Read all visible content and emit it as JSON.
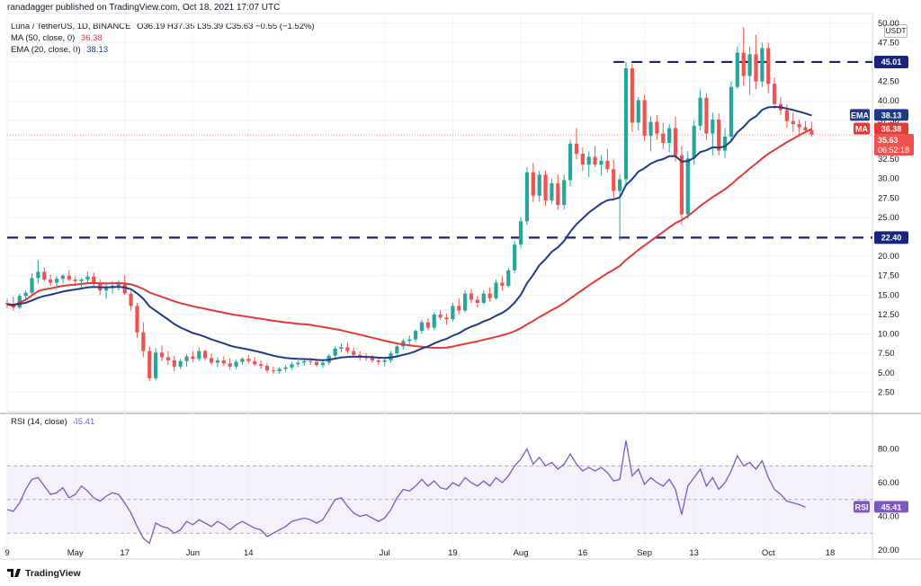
{
  "header": {
    "text": "ranadagger published on TradingView.com, Oct 18, 2021 17:07 UTC"
  },
  "legend": {
    "symbol": "Luna / TetherUS, 1D, BINANCE",
    "ohlc": "O36.19  H37.35  L35.39  C35.63  −0.55 (−1.52%)",
    "ma_label": "MA (50, close, 0)",
    "ma_value": "36.38",
    "ema_label": "EMA (20, close, 0)",
    "ema_value": "38.13",
    "rsi_label": "RSI (14, close)",
    "rsi_value": "45.41"
  },
  "currency": "USDT",
  "footer": {
    "brand": "TradingView"
  },
  "colors": {
    "up": "#26a69a",
    "down": "#ef5350",
    "ema": "#1e3a8a",
    "ma": "#e53935",
    "rsi": "#7e57c2",
    "level": "#1a237e",
    "rsi_band": "#ede7f6"
  },
  "chart_data": [
    {
      "type": "candlestick",
      "title": "Luna / TetherUS, 1D, BINANCE",
      "ylabel": "USDT",
      "ylim": [
        0,
        51.25
      ],
      "y_ticks": [
        "50.00",
        "47.50",
        "45.00",
        "42.50",
        "40.00",
        "37.50",
        "35.00",
        "32.50",
        "30.00",
        "27.50",
        "25.00",
        "22.50",
        "20.00",
        "17.50",
        "15.00",
        "12.50",
        "10.00",
        "7.50",
        "5.00",
        "2.50"
      ],
      "x_ticks": [
        "9",
        "May",
        "17",
        "Jun",
        "14",
        "Jul",
        "19",
        "Aug",
        "16",
        "Sep",
        "13",
        "Oct",
        "18"
      ],
      "x_tick_days": [
        0,
        11,
        19,
        30,
        39,
        61,
        72,
        83,
        93,
        103,
        111,
        123,
        133
      ],
      "ohlc": [
        [
          14.0,
          14.5,
          13.3,
          13.8
        ],
        [
          13.8,
          14.8,
          13.0,
          13.4
        ],
        [
          13.4,
          15.2,
          13.2,
          14.9
        ],
        [
          14.9,
          15.6,
          14.3,
          15.3
        ],
        [
          15.3,
          17.8,
          15.0,
          17.2
        ],
        [
          17.2,
          19.5,
          16.5,
          18.0
        ],
        [
          18.0,
          18.6,
          16.8,
          17.0
        ],
        [
          17.0,
          17.6,
          16.2,
          16.6
        ],
        [
          16.6,
          17.4,
          16.0,
          17.1
        ],
        [
          17.1,
          17.7,
          16.5,
          17.5
        ],
        [
          17.5,
          18.2,
          16.8,
          17.0
        ],
        [
          17.0,
          17.4,
          16.2,
          16.8
        ],
        [
          16.8,
          17.2,
          16.0,
          17.0
        ],
        [
          17.0,
          18.0,
          16.5,
          17.4
        ],
        [
          17.4,
          17.9,
          16.2,
          16.6
        ],
        [
          16.6,
          17.0,
          15.0,
          15.6
        ],
        [
          15.6,
          16.5,
          14.5,
          16.0
        ],
        [
          16.0,
          16.8,
          15.2,
          16.2
        ],
        [
          16.2,
          16.9,
          15.6,
          16.4
        ],
        [
          16.4,
          17.6,
          15.0,
          15.2
        ],
        [
          15.2,
          15.5,
          13.0,
          13.6
        ],
        [
          13.6,
          14.0,
          9.5,
          10.2
        ],
        [
          10.2,
          11.5,
          7.0,
          7.8
        ],
        [
          7.8,
          8.4,
          3.9,
          4.3
        ],
        [
          4.3,
          8.2,
          4.0,
          7.6
        ],
        [
          7.6,
          8.5,
          6.5,
          7.0
        ],
        [
          7.0,
          7.8,
          6.0,
          6.6
        ],
        [
          6.6,
          7.2,
          5.2,
          5.8
        ],
        [
          5.8,
          6.8,
          5.5,
          6.5
        ],
        [
          6.5,
          7.4,
          5.8,
          7.1
        ],
        [
          7.1,
          7.8,
          6.4,
          6.8
        ],
        [
          6.8,
          8.2,
          6.5,
          7.8
        ],
        [
          7.8,
          8.0,
          6.6,
          6.9
        ],
        [
          6.9,
          7.5,
          6.0,
          6.3
        ],
        [
          6.3,
          7.0,
          5.7,
          6.6
        ],
        [
          6.6,
          7.1,
          5.9,
          6.2
        ],
        [
          6.2,
          6.9,
          5.4,
          5.8
        ],
        [
          5.8,
          6.7,
          5.5,
          6.4
        ],
        [
          6.4,
          7.0,
          6.0,
          6.8
        ],
        [
          6.8,
          7.3,
          6.2,
          6.5
        ],
        [
          6.5,
          7.0,
          5.9,
          6.1
        ],
        [
          6.1,
          6.6,
          5.5,
          5.9
        ],
        [
          5.9,
          6.2,
          5.0,
          5.3
        ],
        [
          5.3,
          5.8,
          4.8,
          5.2
        ],
        [
          5.2,
          5.7,
          4.9,
          5.5
        ],
        [
          5.5,
          6.0,
          5.1,
          5.7
        ],
        [
          5.7,
          6.4,
          5.4,
          6.1
        ],
        [
          6.1,
          6.6,
          5.7,
          6.3
        ],
        [
          6.3,
          6.8,
          5.9,
          6.5
        ],
        [
          6.5,
          6.9,
          6.0,
          6.4
        ],
        [
          6.4,
          6.8,
          5.8,
          6.0
        ],
        [
          6.0,
          6.6,
          5.6,
          6.3
        ],
        [
          6.3,
          7.4,
          6.0,
          7.2
        ],
        [
          7.2,
          8.4,
          6.9,
          8.1
        ],
        [
          8.1,
          8.8,
          7.6,
          8.3
        ],
        [
          8.3,
          8.9,
          7.5,
          7.8
        ],
        [
          7.8,
          8.2,
          7.0,
          7.3
        ],
        [
          7.3,
          7.8,
          6.6,
          7.0
        ],
        [
          7.0,
          7.5,
          6.5,
          6.9
        ],
        [
          6.9,
          7.3,
          6.3,
          6.6
        ],
        [
          6.6,
          7.0,
          6.0,
          6.4
        ],
        [
          6.4,
          6.9,
          5.8,
          6.6
        ],
        [
          6.6,
          7.8,
          6.3,
          7.5
        ],
        [
          7.5,
          8.6,
          7.2,
          8.4
        ],
        [
          8.4,
          9.4,
          8.0,
          9.1
        ],
        [
          9.1,
          9.8,
          8.6,
          9.3
        ],
        [
          9.3,
          10.6,
          9.0,
          10.4
        ],
        [
          10.4,
          11.8,
          10.0,
          11.5
        ],
        [
          11.5,
          12.0,
          10.5,
          10.8
        ],
        [
          10.8,
          12.8,
          10.5,
          12.5
        ],
        [
          12.5,
          13.1,
          11.8,
          12.1
        ],
        [
          12.1,
          12.6,
          11.2,
          11.9
        ],
        [
          11.9,
          14.0,
          11.6,
          13.6
        ],
        [
          13.6,
          14.6,
          12.5,
          13.0
        ],
        [
          13.0,
          15.6,
          12.8,
          15.2
        ],
        [
          15.2,
          15.8,
          14.0,
          14.4
        ],
        [
          14.4,
          14.9,
          13.4,
          14.0
        ],
        [
          14.0,
          15.6,
          13.8,
          15.2
        ],
        [
          15.2,
          16.0,
          14.2,
          14.6
        ],
        [
          14.6,
          17.0,
          14.4,
          16.6
        ],
        [
          16.6,
          17.5,
          15.6,
          16.2
        ],
        [
          16.2,
          18.5,
          16.0,
          18.2
        ],
        [
          18.2,
          22.0,
          17.8,
          21.5
        ],
        [
          21.5,
          25.0,
          21.0,
          24.5
        ],
        [
          24.5,
          31.5,
          24.0,
          30.8
        ],
        [
          30.8,
          32.0,
          27.0,
          27.8
        ],
        [
          27.8,
          31.0,
          27.0,
          30.5
        ],
        [
          30.5,
          31.0,
          26.5,
          27.2
        ],
        [
          27.2,
          30.0,
          26.8,
          29.4
        ],
        [
          29.4,
          30.5,
          26.0,
          26.6
        ],
        [
          26.6,
          30.5,
          26.0,
          29.8
        ],
        [
          29.8,
          35.0,
          29.0,
          34.5
        ],
        [
          34.5,
          36.5,
          32.5,
          33.2
        ],
        [
          33.2,
          34.0,
          31.0,
          31.8
        ],
        [
          31.8,
          33.5,
          30.2,
          32.8
        ],
        [
          32.8,
          34.2,
          31.5,
          31.8
        ],
        [
          31.8,
          33.0,
          30.4,
          32.3
        ],
        [
          32.3,
          33.8,
          30.8,
          31.2
        ],
        [
          31.2,
          32.4,
          27.5,
          28.4
        ],
        [
          28.4,
          30.5,
          22.0,
          29.9
        ],
        [
          29.9,
          45.0,
          29.2,
          44.2
        ],
        [
          44.2,
          44.8,
          36.0,
          37.2
        ],
        [
          37.2,
          40.5,
          36.2,
          40.1
        ],
        [
          40.1,
          40.8,
          34.8,
          35.5
        ],
        [
          35.5,
          38.0,
          33.5,
          37.3
        ],
        [
          37.3,
          38.2,
          35.0,
          35.8
        ],
        [
          35.8,
          37.2,
          33.8,
          34.6
        ],
        [
          34.6,
          37.0,
          33.4,
          36.5
        ],
        [
          36.5,
          38.0,
          32.2,
          33.0
        ],
        [
          33.0,
          34.2,
          24.0,
          25.4
        ],
        [
          25.4,
          33.5,
          24.8,
          32.6
        ],
        [
          32.6,
          37.5,
          31.8,
          36.8
        ],
        [
          36.8,
          41.5,
          36.2,
          40.4
        ],
        [
          40.4,
          41.0,
          35.0,
          35.8
        ],
        [
          35.8,
          38.5,
          33.0,
          37.6
        ],
        [
          37.6,
          38.4,
          33.0,
          33.6
        ],
        [
          33.6,
          36.5,
          32.6,
          35.4
        ],
        [
          35.4,
          42.5,
          35.0,
          41.8
        ],
        [
          41.8,
          47.0,
          41.5,
          46.2
        ],
        [
          46.2,
          49.5,
          42.0,
          43.2
        ],
        [
          43.2,
          47.0,
          40.8,
          46.0
        ],
        [
          46.0,
          48.5,
          41.5,
          42.5
        ],
        [
          42.5,
          47.5,
          41.8,
          46.8
        ],
        [
          46.8,
          47.5,
          41.0,
          42.2
        ],
        [
          42.2,
          43.0,
          39.0,
          39.6
        ],
        [
          39.6,
          40.5,
          38.2,
          38.8
        ],
        [
          38.8,
          39.5,
          36.5,
          37.4
        ],
        [
          37.4,
          38.5,
          36.0,
          37.0
        ],
        [
          37.0,
          37.6,
          35.6,
          36.6
        ],
        [
          36.6,
          37.4,
          35.8,
          36.2
        ],
        [
          36.19,
          37.35,
          35.39,
          35.63
        ]
      ],
      "ema20_end": 38.13,
      "ma50_end": 36.38,
      "last_close": 35.63,
      "countdown": "06:52:18",
      "levels": [
        {
          "value": 45.01,
          "label": "45.01"
        },
        {
          "value": 22.4,
          "label": "22.40"
        }
      ],
      "badges": [
        {
          "name": "EMA",
          "value": "38.13"
        },
        {
          "name": "MA",
          "value": "36.38"
        },
        {
          "name": "",
          "value": "35.63"
        }
      ],
      "grid": true
    },
    {
      "type": "line",
      "title": "RSI (14, close)",
      "ylim": [
        20,
        100
      ],
      "y_ticks": [
        "80.00",
        "60.00",
        "40.00",
        "20.00"
      ],
      "band": [
        30,
        70
      ],
      "mid_line": 50,
      "values": [
        44,
        43,
        48,
        56,
        62,
        63,
        58,
        53,
        54,
        57,
        51,
        53,
        58,
        55,
        51,
        49,
        52,
        54,
        53,
        48,
        42,
        34,
        27,
        24,
        36,
        34,
        33,
        30,
        32,
        37,
        35,
        38,
        36,
        34,
        37,
        35,
        32,
        35,
        37,
        35,
        33,
        32,
        28,
        30,
        32,
        34,
        37,
        38,
        39,
        38,
        36,
        38,
        44,
        50,
        51,
        46,
        42,
        40,
        41,
        39,
        37,
        39,
        44,
        51,
        56,
        55,
        58,
        62,
        58,
        61,
        57,
        56,
        60,
        58,
        63,
        60,
        58,
        61,
        58,
        63,
        60,
        64,
        70,
        74,
        80,
        71,
        75,
        70,
        72,
        68,
        71,
        77,
        71,
        67,
        69,
        67,
        69,
        66,
        61,
        62,
        85,
        64,
        68,
        59,
        63,
        60,
        58,
        62,
        56,
        41,
        58,
        63,
        68,
        58,
        63,
        56,
        60,
        67,
        76,
        70,
        72,
        68,
        73,
        63,
        56,
        53,
        49,
        48,
        47,
        45.41
      ],
      "last_value": "45.41"
    }
  ]
}
